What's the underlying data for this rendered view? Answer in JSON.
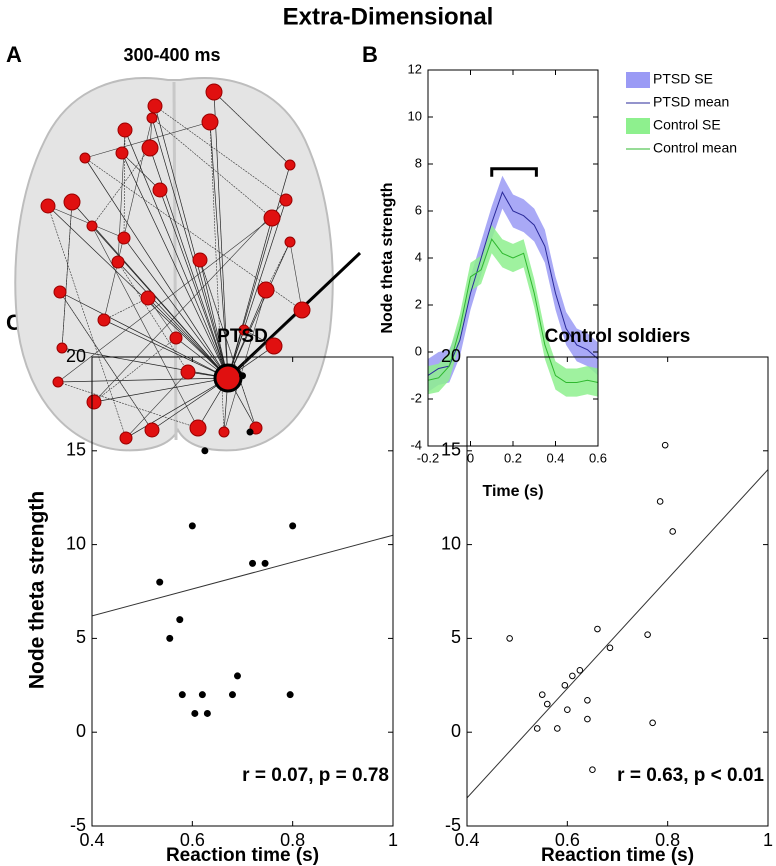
{
  "title": "Extra-Dimensional",
  "panel_labels": [
    "A",
    "B",
    "C"
  ],
  "brain": {
    "title": "300-400 ms"
  },
  "chart_data": [
    {
      "type": "line",
      "ylabel": "Node theta strength",
      "xlabel": "Time (s)",
      "xlim": [
        -0.2,
        0.6
      ],
      "ylim": [
        -4,
        12
      ],
      "xticks": [
        -0.2,
        0,
        0.2,
        0.4,
        0.6
      ],
      "yticks": [
        -4,
        -2,
        0,
        2,
        4,
        6,
        8,
        10,
        12
      ],
      "x": [
        -0.2,
        -0.15,
        -0.1,
        -0.05,
        0,
        0.05,
        0.1,
        0.15,
        0.2,
        0.25,
        0.3,
        0.35,
        0.4,
        0.45,
        0.5,
        0.55,
        0.6
      ],
      "series": [
        {
          "name": "PTSD SE",
          "color": "#9a9af5",
          "lower": [
            -1.7,
            -1.4,
            -1.3,
            -0.2,
            1.8,
            3.3,
            4.8,
            6.1,
            5.3,
            5.1,
            4.7,
            3.8,
            1.8,
            0.3,
            -0.4,
            -0.6,
            -1
          ],
          "upper": [
            -0.3,
            0,
            0.1,
            1.2,
            3.2,
            4.7,
            6.2,
            7.5,
            6.7,
            6.5,
            6.1,
            5.2,
            3.2,
            1.7,
            1,
            0.8,
            0.4
          ]
        },
        {
          "name": "PTSD mean",
          "color": "#2a2a9a",
          "values": [
            -1,
            -0.7,
            -0.6,
            0.5,
            2.5,
            4,
            5.5,
            6.8,
            6,
            5.8,
            5.4,
            4.5,
            2.5,
            1,
            0.3,
            0.1,
            -0.3
          ]
        },
        {
          "name": "Control SE",
          "color": "#8ef08e",
          "lower": [
            -1.8,
            -1.7,
            -1.2,
            0.4,
            2.6,
            2.9,
            4.2,
            3.6,
            3.4,
            3.6,
            1.9,
            -0.3,
            -1.6,
            -1.9,
            -1.9,
            -1.8,
            -1.9
          ],
          "upper": [
            -0.6,
            -0.5,
            0,
            1.6,
            3.8,
            4.1,
            5.4,
            4.8,
            4.6,
            4.8,
            3.1,
            0.9,
            -0.4,
            -0.7,
            -0.7,
            -0.6,
            -0.7
          ]
        },
        {
          "name": "Control mean",
          "color": "#2fb82f",
          "values": [
            -1.2,
            -1.1,
            -0.6,
            1,
            3.2,
            3.5,
            4.8,
            4.2,
            4,
            4.2,
            2.5,
            0.3,
            -1,
            -1.3,
            -1.3,
            -1.2,
            -1.3
          ]
        }
      ],
      "significance_bracket": {
        "x": [
          0.1,
          0.31
        ],
        "y": 7.8
      }
    },
    {
      "type": "scatter",
      "title": "PTSD",
      "ylabel": "Node theta strength",
      "xlabel": "Reaction time (s)",
      "xlim": [
        0.4,
        1
      ],
      "ylim": [
        -5,
        20
      ],
      "xticks": [
        0.4,
        0.6,
        0.8,
        1
      ],
      "yticks": [
        -5,
        0,
        5,
        10,
        15,
        20
      ],
      "marker": "filled",
      "color": "#000000",
      "x": [
        0.535,
        0.555,
        0.575,
        0.58,
        0.6,
        0.605,
        0.62,
        0.625,
        0.63,
        0.68,
        0.69,
        0.7,
        0.715,
        0.72,
        0.745,
        0.795,
        0.8
      ],
      "values": [
        8,
        5,
        6,
        2,
        11,
        1,
        2,
        15,
        1,
        2,
        3,
        19,
        16,
        9,
        9,
        2,
        11
      ],
      "fit_line": {
        "x": [
          0.4,
          1
        ],
        "values": [
          6.2,
          10.5
        ]
      },
      "annotation": "r = 0.07, p = 0.78"
    },
    {
      "type": "scatter",
      "title": "Control soldiers",
      "xlabel": "Reaction time (s)",
      "xlim": [
        0.4,
        1
      ],
      "ylim": [
        -5,
        20
      ],
      "xticks": [
        0.4,
        0.6,
        0.8,
        1
      ],
      "yticks": [
        -5,
        0,
        5,
        10,
        15,
        20
      ],
      "marker": "open",
      "color": "#000000",
      "x": [
        0.485,
        0.54,
        0.55,
        0.56,
        0.58,
        0.595,
        0.6,
        0.61,
        0.625,
        0.64,
        0.64,
        0.65,
        0.66,
        0.685,
        0.76,
        0.77,
        0.785,
        0.795,
        0.81
      ],
      "values": [
        5,
        0.2,
        2,
        1.5,
        0.2,
        2.5,
        1.2,
        3,
        3.3,
        1.7,
        0.7,
        -2,
        5.5,
        4.5,
        5.2,
        0.5,
        12.3,
        15.3,
        10.7
      ],
      "fit_line": {
        "x": [
          0.4,
          1
        ],
        "values": [
          -3.5,
          14
        ]
      },
      "annotation": "r = 0.63, p < 0.01"
    }
  ]
}
